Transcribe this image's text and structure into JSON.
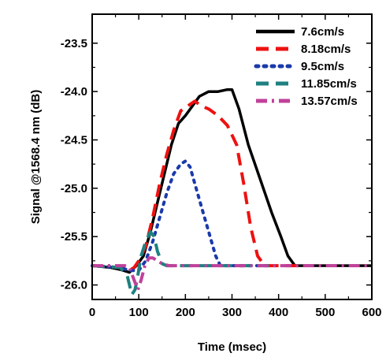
{
  "chart_data": {
    "type": "line",
    "title": "",
    "xlabel": "Time (msec)",
    "ylabel": "Signal @1568.4 nm (dB)",
    "xlim": [
      0,
      600
    ],
    "ylim": [
      -26.15,
      -23.2
    ],
    "xticks": [
      0,
      100,
      200,
      300,
      400,
      500,
      600
    ],
    "xtick_labels": [
      "0",
      "100",
      "200",
      "300",
      "400",
      "500",
      "600"
    ],
    "yticks": [
      -26.0,
      -25.5,
      -25.0,
      -24.5,
      -24.0,
      -23.5
    ],
    "ytick_labels": [
      "-26.0",
      "-25.5",
      "-25.0",
      "-24.5",
      "-24.0",
      "-23.5"
    ],
    "grid": false,
    "legend_position": "top-right",
    "series": [
      {
        "name": "7.6cm/s",
        "color": "#000000",
        "style": "solid",
        "x": [
          0,
          40,
          60,
          80,
          95,
          110,
          125,
          140,
          155,
          170,
          185,
          200,
          215,
          230,
          250,
          270,
          290,
          300,
          315,
          335,
          360,
          385,
          405,
          420,
          435,
          450,
          480,
          520,
          560,
          600
        ],
        "y": [
          -25.8,
          -25.82,
          -25.84,
          -25.87,
          -25.8,
          -25.7,
          -25.45,
          -25.15,
          -24.85,
          -24.55,
          -24.33,
          -24.25,
          -24.15,
          -24.05,
          -24.0,
          -24.0,
          -23.98,
          -23.98,
          -24.18,
          -24.55,
          -24.9,
          -25.25,
          -25.5,
          -25.7,
          -25.8,
          -25.8,
          -25.8,
          -25.8,
          -25.8,
          -25.8
        ]
      },
      {
        "name": "8.18cm/s",
        "color": "#ee1111",
        "style": "dash",
        "x": [
          0,
          60,
          80,
          90,
          100,
          115,
          130,
          145,
          160,
          175,
          190,
          205,
          220,
          235,
          250,
          270,
          290,
          310,
          325,
          340,
          355,
          370,
          380,
          400,
          450
        ],
        "y": [
          -25.8,
          -25.82,
          -25.85,
          -25.82,
          -25.75,
          -25.6,
          -25.3,
          -24.95,
          -24.65,
          -24.4,
          -24.2,
          -24.15,
          -24.1,
          -24.15,
          -24.18,
          -24.25,
          -24.35,
          -24.55,
          -24.95,
          -25.4,
          -25.7,
          -25.8,
          -25.8,
          -25.8,
          -25.8
        ]
      },
      {
        "name": "9.5cm/s",
        "color": "#1a3aaa",
        "style": "dot",
        "x": [
          0,
          60,
          80,
          90,
          100,
          115,
          130,
          145,
          160,
          175,
          190,
          200,
          210,
          220,
          235,
          250,
          265,
          275,
          290,
          330,
          380
        ],
        "y": [
          -25.8,
          -25.82,
          -25.85,
          -25.85,
          -25.85,
          -25.75,
          -25.55,
          -25.3,
          -25.05,
          -24.85,
          -24.75,
          -24.72,
          -24.78,
          -24.95,
          -25.2,
          -25.45,
          -25.7,
          -25.8,
          -25.8,
          -25.8,
          -25.8
        ]
      },
      {
        "name": "11.85cm/s",
        "color": "#1e8080",
        "style": "dash",
        "x": [
          0,
          60,
          75,
          85,
          92,
          98,
          105,
          115,
          125,
          133,
          140,
          150,
          160,
          175,
          200,
          250,
          300,
          350,
          380
        ],
        "y": [
          -25.8,
          -25.82,
          -25.9,
          -26.1,
          -26.05,
          -25.9,
          -25.7,
          -25.55,
          -25.45,
          -25.5,
          -25.65,
          -25.78,
          -25.8,
          -25.8,
          -25.8,
          -25.8,
          -25.8,
          -25.8,
          -25.8
        ]
      },
      {
        "name": "13.57cm/s",
        "color": "#c0409a",
        "style": "dashdot",
        "x": [
          0,
          70,
          80,
          90,
          98,
          105,
          113,
          122,
          130,
          140,
          150,
          165,
          200,
          250,
          300,
          350,
          400,
          450,
          500,
          550,
          600
        ],
        "y": [
          -25.8,
          -25.8,
          -25.82,
          -25.95,
          -26.05,
          -25.95,
          -25.8,
          -25.72,
          -25.72,
          -25.75,
          -25.78,
          -25.8,
          -25.8,
          -25.8,
          -25.8,
          -25.8,
          -25.8,
          -25.8,
          -25.8,
          -25.8,
          -25.8
        ]
      }
    ]
  }
}
